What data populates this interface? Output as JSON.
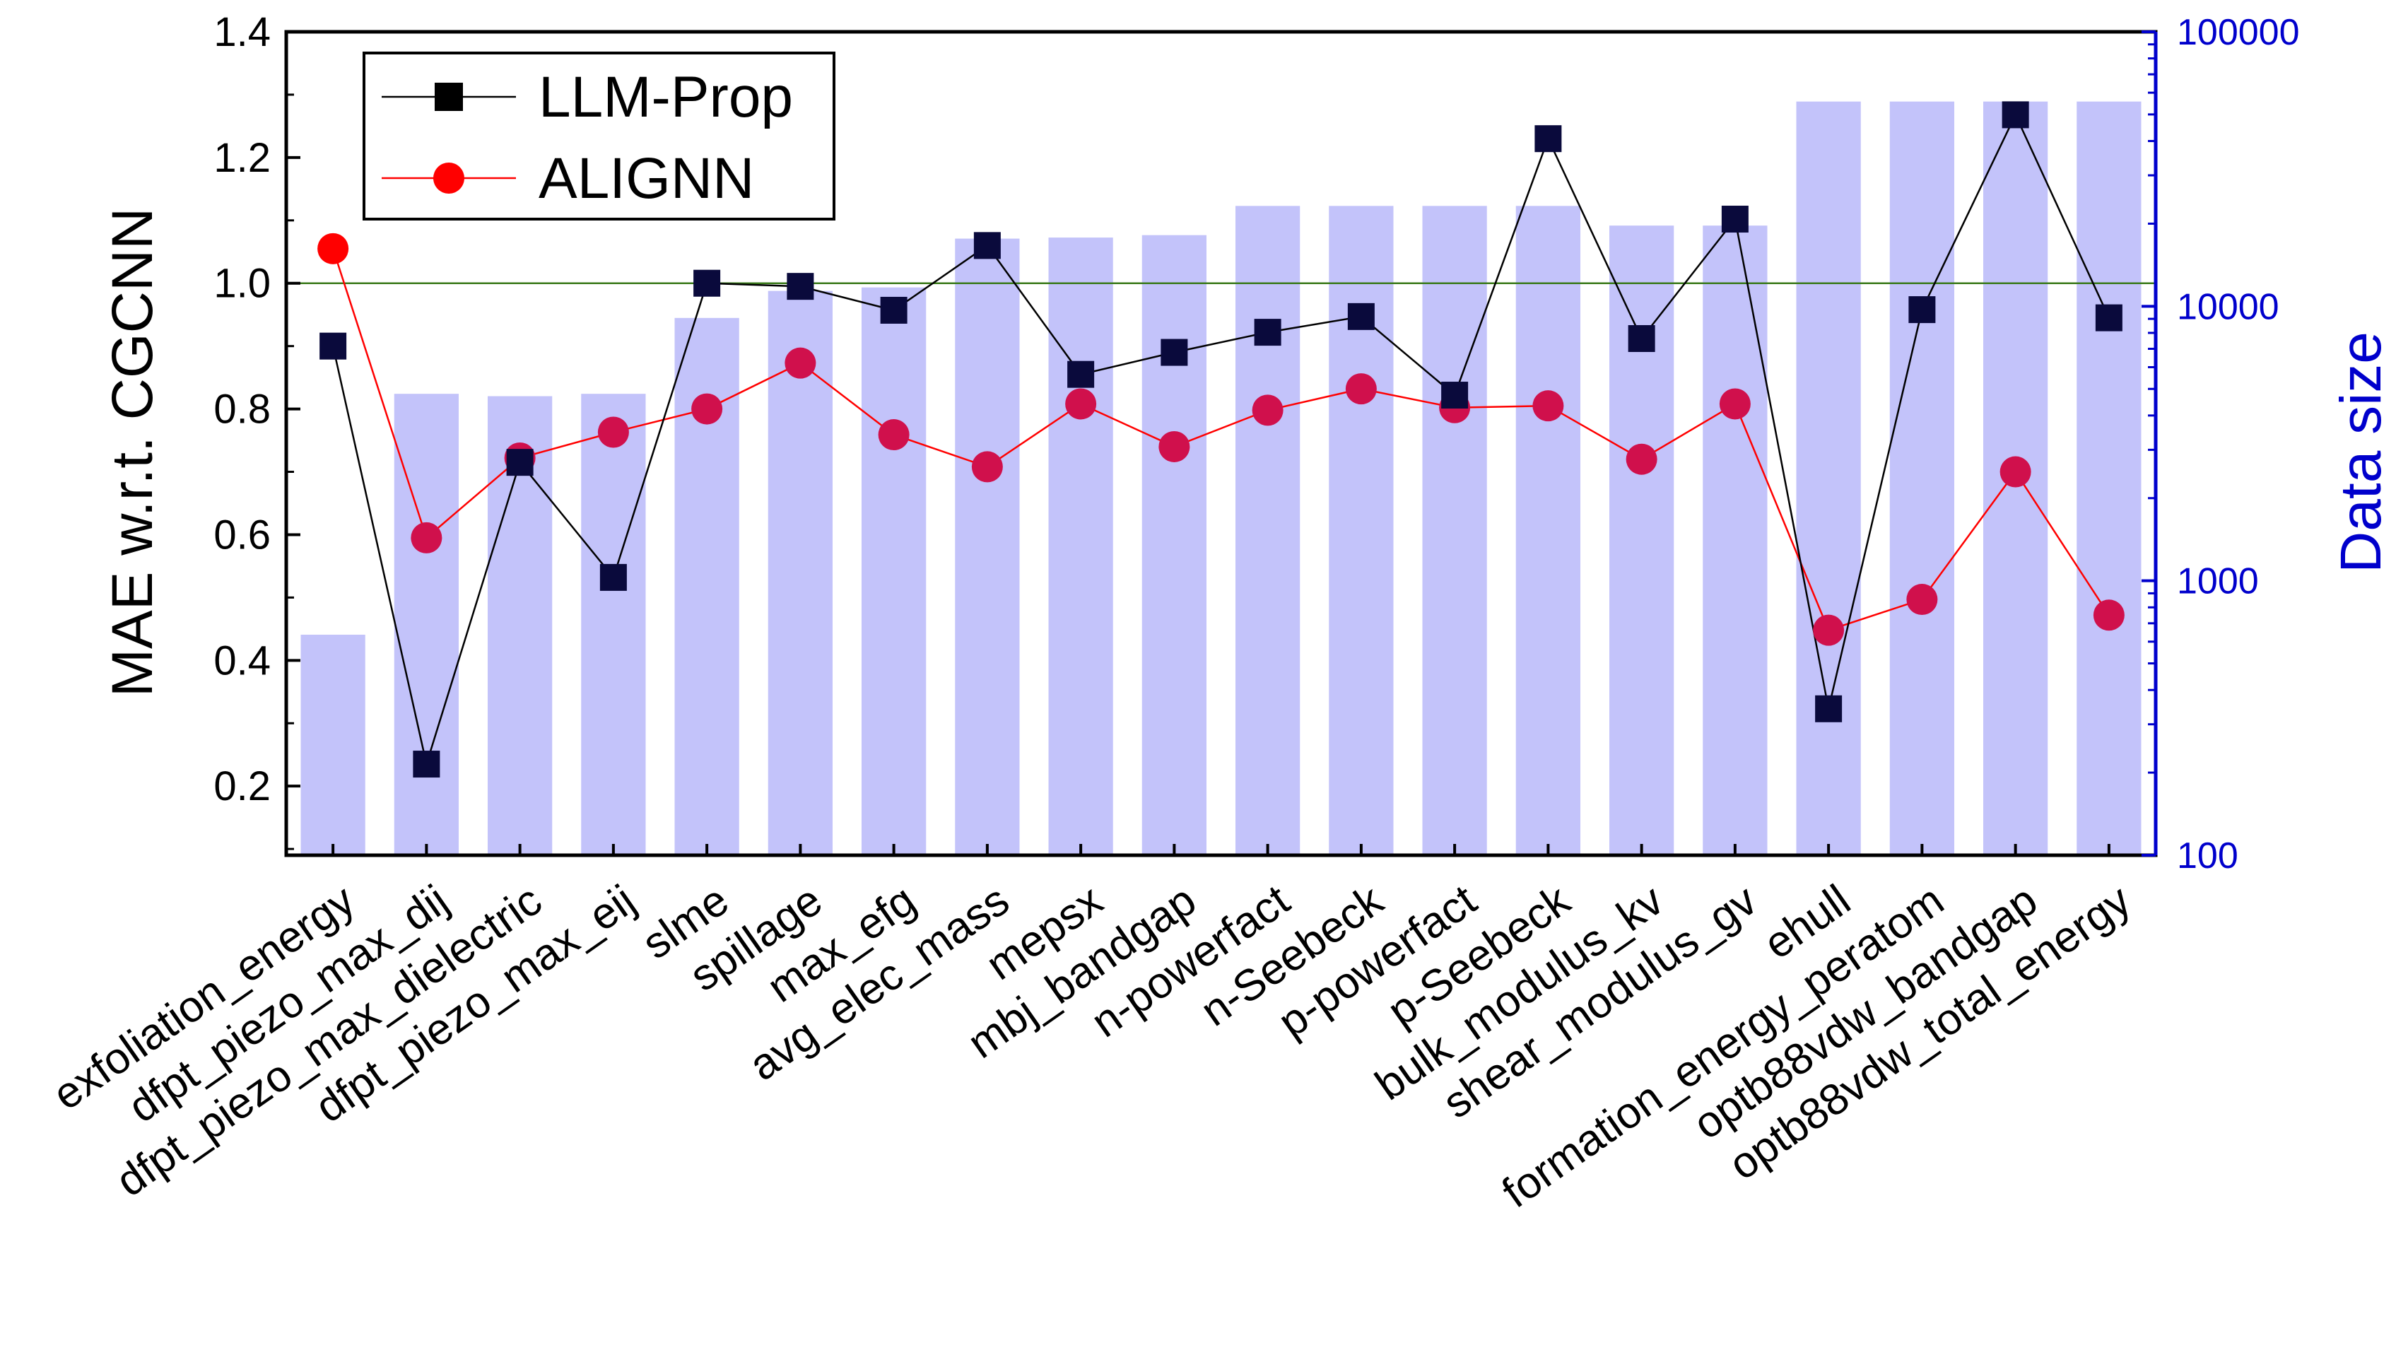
{
  "chart_data": {
    "type": "bar+line",
    "categories": [
      "exfoliation_energy",
      "dfpt_piezo_max_dij",
      "dfpt_piezo_max_dielectric",
      "dfpt_piezo_max_eij",
      "slme",
      "spillage",
      "max_efg",
      "avg_elec_mass",
      "mepsx",
      "mbj_bandgap",
      "n-powerfact",
      "n-Seebeck",
      "p-powerfact",
      "p-Seebeck",
      "bulk_modulus_kv",
      "shear_modulus_gv",
      "ehull",
      "formation_energy_peratom",
      "optb88vdw_bandgap",
      "optb88vdw_total_energy"
    ],
    "series": [
      {
        "name": "LLM-Prop",
        "kind": "line",
        "axis": "left",
        "marker": "square",
        "color": "#000000",
        "marker_fill": "#0a0a3c",
        "values": [
          0.9,
          0.235,
          0.715,
          0.532,
          1.0,
          0.995,
          0.957,
          1.06,
          0.855,
          0.89,
          0.922,
          0.947,
          0.822,
          1.23,
          0.912,
          1.102,
          0.323,
          0.958,
          1.268,
          0.945
        ]
      },
      {
        "name": "ALIGNN",
        "kind": "line",
        "axis": "left",
        "marker": "circle",
        "color": "#ff0000",
        "marker_fill": "#d0104c",
        "first_marker_fill": "#ff0000",
        "values": [
          1.055,
          0.595,
          0.722,
          0.763,
          0.8,
          0.873,
          0.759,
          0.708,
          0.808,
          0.74,
          0.798,
          0.832,
          0.802,
          0.805,
          0.72,
          0.808,
          0.448,
          0.497,
          0.7,
          0.472
        ]
      },
      {
        "name": "Data size",
        "kind": "bar",
        "axis": "right",
        "color": "#c3c3fa",
        "values": [
          636,
          4799,
          4704,
          4799,
          9068,
          11375,
          11714,
          17642,
          17798,
          18167,
          23210,
          23210,
          23210,
          23210,
          19680,
          19680,
          55713,
          55713,
          55713,
          55713
        ]
      }
    ],
    "left_axis": {
      "label": "MAE w.r.t. CGCNN",
      "ylim": [
        0.09,
        1.4
      ],
      "ticks": [
        0.2,
        0.4,
        0.6,
        0.8,
        1.0,
        1.2,
        1.4
      ],
      "tick_labels": [
        "0.2",
        "0.4",
        "0.6",
        "0.8",
        "1.0",
        "1.2",
        "1.4"
      ],
      "color": "#000000"
    },
    "right_axis": {
      "label": "Data size",
      "scale": "log",
      "ylim": [
        100,
        100000
      ],
      "ticks": [
        100,
        1000,
        10000,
        100000
      ],
      "tick_labels": [
        "100",
        "1000",
        "10000",
        "100000"
      ],
      "color": "#0000cc"
    },
    "reference_line": {
      "y": 1.0,
      "color": "#3a7a1a"
    },
    "legend": {
      "placement": "top-left",
      "entries": [
        "LLM-Prop",
        "ALIGNN"
      ]
    },
    "grid": false
  }
}
